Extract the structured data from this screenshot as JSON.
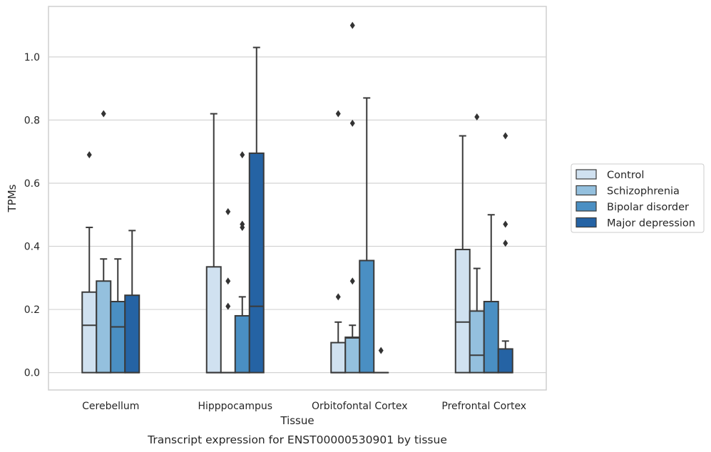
{
  "chart_data": {
    "type": "box",
    "title": "",
    "caption": "Transcript expression for ENST00000530901 by tissue",
    "xlabel": "Tissue",
    "ylabel": "TPMs",
    "ylim": [
      -0.055,
      1.16
    ],
    "yticks": [
      0.0,
      0.2,
      0.4,
      0.6,
      0.8,
      1.0
    ],
    "ytick_labels": [
      "0.0",
      "0.2",
      "0.4",
      "0.6",
      "0.8",
      "1.0"
    ],
    "grid": true,
    "legend_position": "right",
    "categories": [
      "Cerebellum",
      "Hipppocampus",
      "Orbitofontal Cortex",
      "Prefrontal Cortex"
    ],
    "series": [
      {
        "name": "Control",
        "color": "#d0e1f0",
        "boxes": [
          {
            "min": 0.0,
            "q1": 0.0,
            "median": 0.15,
            "q3": 0.255,
            "max": 0.46,
            "outliers": [
              0.69
            ]
          },
          {
            "min": 0.0,
            "q1": 0.0,
            "median": 0.0,
            "q3": 0.335,
            "max": 0.82,
            "outliers": []
          },
          {
            "min": 0.0,
            "q1": 0.0,
            "median": 0.0,
            "q3": 0.095,
            "max": 0.16,
            "outliers": [
              0.24,
              0.82
            ]
          },
          {
            "min": 0.0,
            "q1": 0.0,
            "median": 0.16,
            "q3": 0.39,
            "max": 0.75,
            "outliers": []
          }
        ]
      },
      {
        "name": "Schizophrenia",
        "color": "#94c0de",
        "boxes": [
          {
            "min": 0.0,
            "q1": 0.0,
            "median": 0.0,
            "q3": 0.29,
            "max": 0.36,
            "outliers": [
              0.82
            ]
          },
          {
            "min": 0.0,
            "q1": 0.0,
            "median": 0.0,
            "q3": 0.0,
            "max": 0.0,
            "outliers": [
              0.21,
              0.29,
              0.51
            ]
          },
          {
            "min": 0.0,
            "q1": 0.0,
            "median": 0.11,
            "q3": 0.112,
            "max": 0.15,
            "outliers": [
              0.29,
              0.79,
              1.1
            ]
          },
          {
            "min": 0.0,
            "q1": 0.0,
            "median": 0.055,
            "q3": 0.195,
            "max": 0.33,
            "outliers": [
              0.81
            ]
          }
        ]
      },
      {
        "name": "Bipolar disorder",
        "color": "#4a8fc3",
        "boxes": [
          {
            "min": 0.0,
            "q1": 0.0,
            "median": 0.145,
            "q3": 0.225,
            "max": 0.36,
            "outliers": []
          },
          {
            "min": 0.0,
            "q1": 0.0,
            "median": 0.0,
            "q3": 0.18,
            "max": 0.24,
            "outliers": [
              0.46,
              0.47,
              0.69
            ]
          },
          {
            "min": 0.0,
            "q1": 0.0,
            "median": 0.0,
            "q3": 0.355,
            "max": 0.87,
            "outliers": []
          },
          {
            "min": 0.0,
            "q1": 0.0,
            "median": 0.0,
            "q3": 0.225,
            "max": 0.5,
            "outliers": []
          }
        ]
      },
      {
        "name": "Major depression",
        "color": "#2563a4",
        "boxes": [
          {
            "min": 0.0,
            "q1": 0.0,
            "median": 0.0,
            "q3": 0.245,
            "max": 0.45,
            "outliers": []
          },
          {
            "min": 0.0,
            "q1": 0.0,
            "median": 0.21,
            "q3": 0.695,
            "max": 1.03,
            "outliers": []
          },
          {
            "min": 0.0,
            "q1": 0.0,
            "median": 0.0,
            "q3": 0.0,
            "max": 0.0,
            "outliers": [
              0.07
            ]
          },
          {
            "min": 0.0,
            "q1": 0.0,
            "median": 0.0,
            "q3": 0.075,
            "max": 0.1,
            "outliers": [
              0.41,
              0.47,
              0.75
            ]
          }
        ]
      }
    ]
  }
}
